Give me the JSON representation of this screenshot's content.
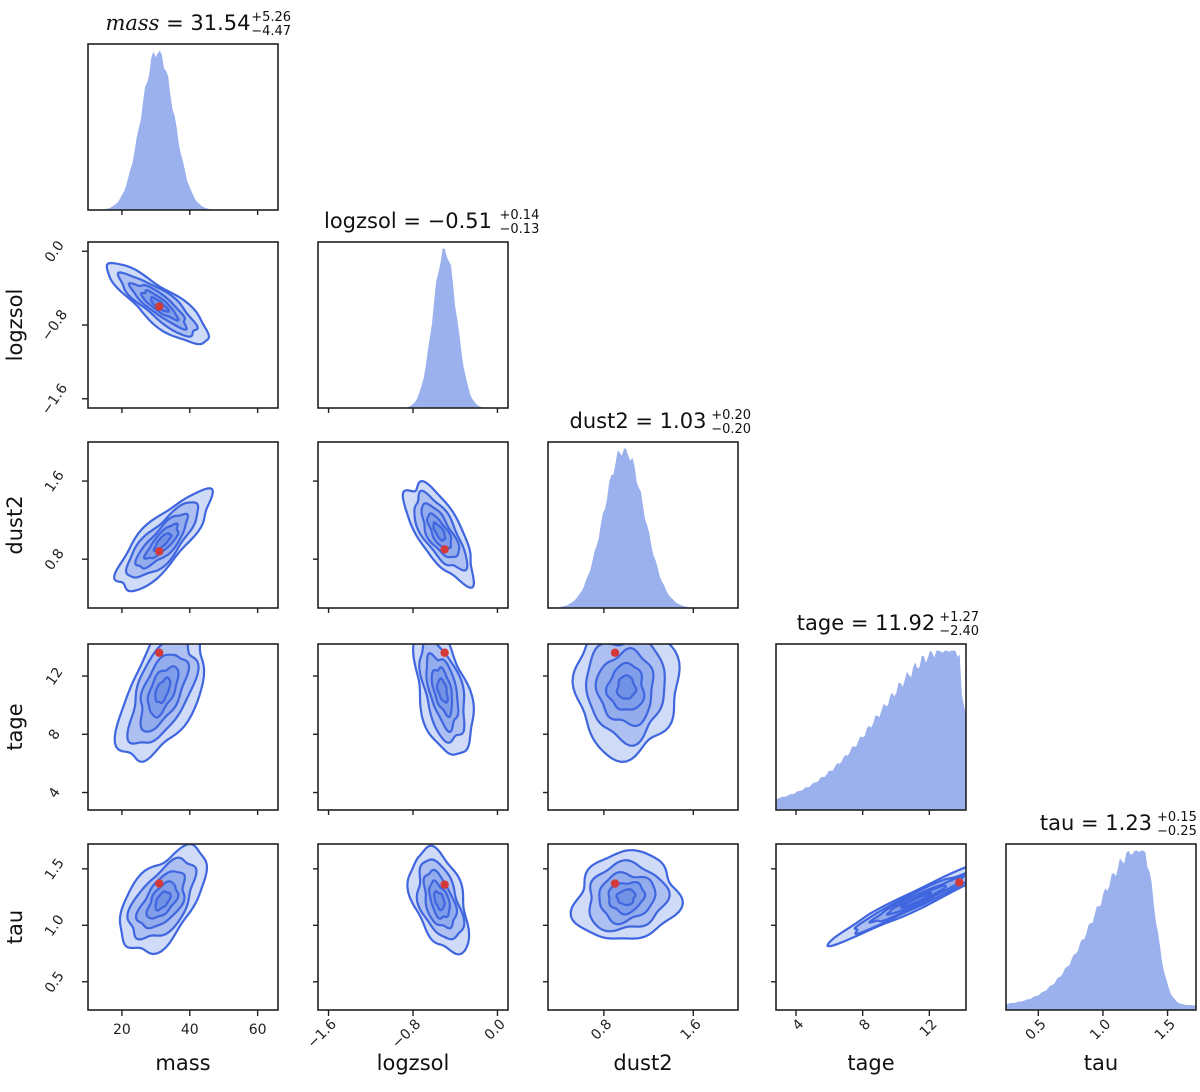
{
  "chart_data": {
    "type": "corner",
    "parameters": [
      {
        "key": "mass",
        "label": "mass",
        "title_name": "mass",
        "title_italic": true,
        "median": "31.54",
        "plus": "+5.26",
        "minus": "−4.47",
        "range": [
          10,
          66
        ],
        "ticks": [
          20,
          40,
          60
        ],
        "tick_labels": [
          "20",
          "40",
          "60"
        ],
        "mode": 30.5,
        "sigma": 4.8
      },
      {
        "key": "logzsol",
        "label": "logzsol",
        "title_name": "logzsol",
        "title_italic": false,
        "median": "−0.51",
        "plus": "+0.14",
        "minus": "−0.13",
        "range": [
          -1.7,
          0.1
        ],
        "ticks": [
          -1.6,
          -0.8,
          0.0
        ],
        "tick_labels": [
          "−1.6",
          "−0.8",
          "0.0"
        ],
        "mode": -0.5,
        "sigma": 0.11
      },
      {
        "key": "dust2",
        "label": "dust2",
        "title_name": "dust2",
        "title_italic": false,
        "median": "1.03",
        "plus": "+0.20",
        "minus": "−0.20",
        "range": [
          0.3,
          2.0
        ],
        "ticks": [
          0.8,
          1.6
        ],
        "tick_labels": [
          "0.8",
          "1.6"
        ],
        "mode": 0.98,
        "sigma": 0.18
      },
      {
        "key": "tage",
        "label": "tage",
        "title_name": "tage",
        "title_italic": false,
        "median": "11.92",
        "plus": "+1.27",
        "minus": "−2.40",
        "range": [
          2.8,
          14.2
        ],
        "ticks": [
          4,
          8,
          12
        ],
        "tick_labels": [
          "4",
          "8",
          "12"
        ],
        "mode": 13.4,
        "sigma": 2.2
      },
      {
        "key": "tau",
        "label": "tau",
        "title_name": "tau",
        "title_italic": false,
        "median": "1.23",
        "plus": "+0.15",
        "minus": "−0.25",
        "range": [
          0.25,
          1.72
        ],
        "ticks": [
          0.5,
          1.0,
          1.5
        ],
        "tick_labels": [
          "0.5",
          "1.0",
          "1.5"
        ],
        "mode": 1.3,
        "sigma": 0.18
      }
    ],
    "pairs": [
      {
        "x": "mass",
        "y": "logzsol",
        "center": [
          31,
          -0.58
        ],
        "sx": 6.5,
        "sy": 0.19,
        "rho": -0.85,
        "peak": [
          31,
          -0.6
        ]
      },
      {
        "x": "mass",
        "y": "dust2",
        "center": [
          32,
          0.98
        ],
        "sx": 6.0,
        "sy": 0.22,
        "rho": 0.8,
        "peak": [
          31,
          0.88
        ]
      },
      {
        "x": "logzsol",
        "y": "dust2",
        "center": [
          -0.55,
          1.08
        ],
        "sx": 0.14,
        "sy": 0.22,
        "rho": -0.7,
        "peak": [
          -0.5,
          0.9
        ]
      },
      {
        "x": "mass",
        "y": "tage",
        "center": [
          32,
          11.0
        ],
        "sx": 5.5,
        "sy": 2.1,
        "rho": 0.55,
        "peak": [
          31,
          13.6
        ]
      },
      {
        "x": "logzsol",
        "y": "tage",
        "center": [
          -0.52,
          11.0
        ],
        "sx": 0.12,
        "sy": 2.0,
        "rho": -0.5,
        "peak": [
          -0.5,
          13.6
        ]
      },
      {
        "x": "dust2",
        "y": "tage",
        "center": [
          1.0,
          11.2
        ],
        "sx": 0.2,
        "sy": 2.0,
        "rho": 0.0,
        "peak": [
          0.9,
          13.6
        ]
      },
      {
        "x": "mass",
        "y": "tau",
        "center": [
          32,
          1.22
        ],
        "sx": 5.5,
        "sy": 0.2,
        "rho": 0.55,
        "peak": [
          31,
          1.37
        ]
      },
      {
        "x": "logzsol",
        "y": "tau",
        "center": [
          -0.55,
          1.22
        ],
        "sx": 0.12,
        "sy": 0.2,
        "rho": -0.45,
        "peak": [
          -0.5,
          1.36
        ]
      },
      {
        "x": "dust2",
        "y": "tau",
        "center": [
          1.0,
          1.25
        ],
        "sx": 0.2,
        "sy": 0.17,
        "rho": 0.1,
        "peak": [
          0.9,
          1.37
        ]
      },
      {
        "x": "tage",
        "y": "tau",
        "center": [
          11.2,
          1.22
        ],
        "sx": 2.2,
        "sy": 0.16,
        "rho": 0.97,
        "peak": [
          13.8,
          1.38
        ]
      }
    ],
    "colors": {
      "histogram": "#7f9be9",
      "contour": "#3f66df",
      "peak": "#d43a3a"
    }
  }
}
